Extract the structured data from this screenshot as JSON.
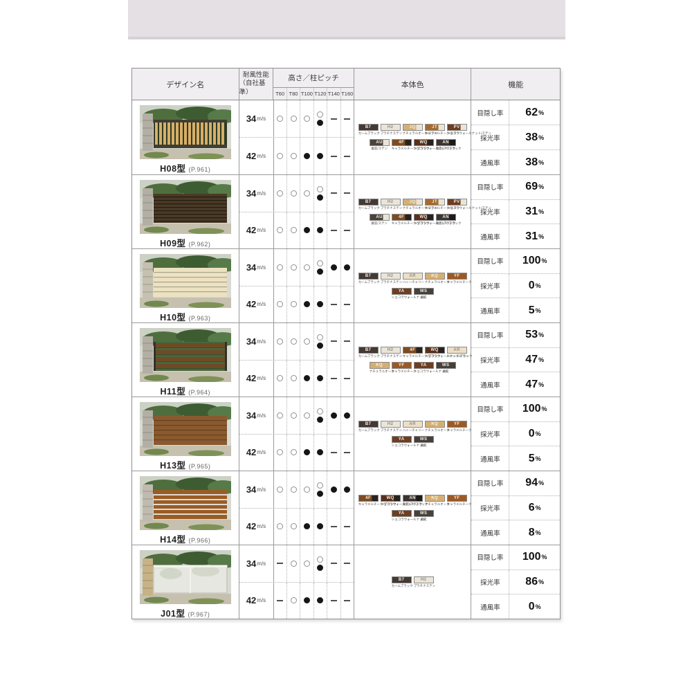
{
  "table": {
    "header": {
      "design": "デザイン名",
      "wind_line1": "耐風性能",
      "wind_line2": "（自社基準）",
      "height_pitch": "高さ／柱ピッチ",
      "height_cols": [
        "T60",
        "T80",
        "T100",
        "T120",
        "T140",
        "T160"
      ],
      "body_color": "本体色",
      "function": "機能"
    },
    "marker_legend": {
      "o": "白丸",
      "f": "黒丸",
      "of": "白丸と黒丸",
      "-": "対応なし"
    },
    "rows": [
      {
        "name": "H08型",
        "page_ref": "(P.961)",
        "photo": {
          "style": "vertical-slats",
          "fence": "#d7af67",
          "pillar": "#b3afa4"
        },
        "wind": [
          {
            "speed": "34",
            "unit": "m/s",
            "marks": [
              "o",
              "o",
              "o",
              "of",
              "-",
              "-"
            ]
          },
          {
            "speed": "42",
            "unit": "m/s",
            "marks": [
              "o",
              "o",
              "f",
              "f",
              "-",
              "-"
            ]
          }
        ],
        "color_rows": [
          [
            {
              "code": "B7",
              "label": "カームブラック",
              "color": "#443933"
            },
            {
              "code": "H2",
              "label": "プラチナステン",
              "color": "#eae5d9",
              "light": true
            },
            {
              "code": "JQ",
              "label": "ナチュラルオーク/ステン",
              "color": "#d4af74",
              "color2": "#e9e4d6"
            },
            {
              "code": "JT",
              "label": "キャラメルチーク/ステン",
              "color": "#a86a2c",
              "color2": "#e9e4d6"
            },
            {
              "code": "PV",
              "label": "ショコラウォールナット/ステン",
              "color": "#6d3e22",
              "color2": "#e9e4d6"
            }
          ],
          [
            {
              "code": "AU",
              "label": "桑炭/ステン",
              "color": "#4a423b",
              "color2": "#e9e4d6"
            },
            {
              "code": "4F",
              "label": "キャラメルチーク/ブラック",
              "color": "#7e4b20",
              "color2": "#272220"
            },
            {
              "code": "WQ",
              "label": "ショコラウォールナット/ブラック",
              "color": "#59301a",
              "color2": "#272220"
            },
            {
              "code": "AN",
              "label": "桑炭/ブラック",
              "color": "#3b3430",
              "color2": "#1d1a19"
            }
          ]
        ],
        "functions": [
          {
            "label": "目隠し率",
            "value": "62",
            "unit": "%"
          },
          {
            "label": "採光率",
            "value": "38",
            "unit": "%"
          },
          {
            "label": "通風率",
            "value": "38",
            "unit": "%"
          }
        ]
      },
      {
        "name": "H09型",
        "page_ref": "(P.962)",
        "photo": {
          "style": "dark-slits",
          "fence": "#4a3a26",
          "pillar": "#b3afa4"
        },
        "wind": [
          {
            "speed": "34",
            "unit": "m/s",
            "marks": [
              "o",
              "o",
              "o",
              "of",
              "-",
              "-"
            ]
          },
          {
            "speed": "42",
            "unit": "m/s",
            "marks": [
              "o",
              "o",
              "f",
              "f",
              "-",
              "-"
            ]
          }
        ],
        "color_rows": [
          [
            {
              "code": "B7",
              "label": "カームブラック",
              "color": "#443933"
            },
            {
              "code": "H2",
              "label": "プラチナステン",
              "color": "#eae5d9",
              "light": true
            },
            {
              "code": "JQ",
              "label": "ナチュラルオーク/ステン",
              "color": "#d4af74",
              "color2": "#e9e4d6"
            },
            {
              "code": "JT",
              "label": "キャラメルチーク/ステン",
              "color": "#a86a2c",
              "color2": "#e9e4d6"
            },
            {
              "code": "PV",
              "label": "ショコラウォールナット/ステン",
              "color": "#6d3e22",
              "color2": "#e9e4d6"
            }
          ],
          [
            {
              "code": "AU",
              "label": "桑炭/ステン",
              "color": "#4a423b",
              "color2": "#e9e4d6"
            },
            {
              "code": "4F",
              "label": "キャラメルチーク/ブラック",
              "color": "#7e4b20",
              "color2": "#272220"
            },
            {
              "code": "WQ",
              "label": "ショコラウォールナット/ブラック",
              "color": "#59301a",
              "color2": "#272220"
            },
            {
              "code": "AN",
              "label": "桑炭/ブラック",
              "color": "#3b3430",
              "color2": "#1d1a19"
            }
          ]
        ],
        "functions": [
          {
            "label": "目隠し率",
            "value": "69",
            "unit": "%"
          },
          {
            "label": "採光率",
            "value": "31",
            "unit": "%"
          },
          {
            "label": "通風率",
            "value": "31",
            "unit": "%"
          }
        ]
      },
      {
        "name": "H10型",
        "page_ref": "(P.963)",
        "photo": {
          "style": "solid-boards",
          "fence": "#ece2c2",
          "pillar": "#c6c0b0"
        },
        "wind": [
          {
            "speed": "34",
            "unit": "m/s",
            "marks": [
              "o",
              "o",
              "o",
              "of",
              "f",
              "f"
            ]
          },
          {
            "speed": "42",
            "unit": "m/s",
            "marks": [
              "o",
              "o",
              "f",
              "f",
              "-",
              "-"
            ]
          }
        ],
        "color_rows": [
          [
            {
              "code": "B7",
              "label": "カームブラック",
              "color": "#443933"
            },
            {
              "code": "H2",
              "label": "プラチナステン",
              "color": "#eae5d9",
              "light": true
            },
            {
              "code": "AR",
              "label": "ハニーチェリー",
              "color": "#ecdfc6",
              "light": true
            },
            {
              "code": "KQ",
              "label": "ナチュラルオーク",
              "color": "#d4af74"
            },
            {
              "code": "YF",
              "label": "キャラメルチーク",
              "color": "#9b5a25"
            }
          ],
          [
            {
              "code": "YA",
              "label": "ショコラウォールナット",
              "color": "#6d3e22"
            },
            {
              "code": "WS",
              "label": "桑炭",
              "color": "#46403a"
            }
          ]
        ],
        "functions": [
          {
            "label": "目隠し率",
            "value": "100",
            "unit": "%"
          },
          {
            "label": "採光率",
            "value": "0",
            "unit": "%"
          },
          {
            "label": "通風率",
            "value": "5",
            "unit": "%"
          }
        ]
      },
      {
        "name": "H11型",
        "page_ref": "(P.964)",
        "photo": {
          "style": "open-boards",
          "fence": "#6f4a26",
          "pillar": "#b3afa4"
        },
        "wind": [
          {
            "speed": "34",
            "unit": "m/s",
            "marks": [
              "o",
              "o",
              "o",
              "of",
              "-",
              "-"
            ]
          },
          {
            "speed": "42",
            "unit": "m/s",
            "marks": [
              "o",
              "o",
              "f",
              "f",
              "-",
              "-"
            ]
          }
        ],
        "color_rows": [
          [
            {
              "code": "B7",
              "label": "カームブラック",
              "color": "#443933"
            },
            {
              "code": "H2",
              "label": "プラチナステン",
              "color": "#eae5d9",
              "light": true
            },
            {
              "code": "4F",
              "label": "キャラメルチーク/ブラック",
              "color": "#7e4b20",
              "color2": "#272220"
            },
            {
              "code": "WQ",
              "label": "ショコラウォールナット/ブラック",
              "color": "#59301a",
              "color2": "#272220"
            },
            {
              "code": "AR",
              "label": "ハニーチェリー",
              "color": "#ecdfc6",
              "light": true
            }
          ],
          [
            {
              "code": "KQ",
              "label": "ナチュラルオーク",
              "color": "#d4af74"
            },
            {
              "code": "YF",
              "label": "キャラメルチーク",
              "color": "#9b5a25"
            },
            {
              "code": "YA",
              "label": "ショコラウォールナット",
              "color": "#6d3e22"
            },
            {
              "code": "WS",
              "label": "桑炭",
              "color": "#46403a"
            }
          ]
        ],
        "functions": [
          {
            "label": "目隠し率",
            "value": "53",
            "unit": "%"
          },
          {
            "label": "採光率",
            "value": "47",
            "unit": "%"
          },
          {
            "label": "通風率",
            "value": "47",
            "unit": "%"
          }
        ]
      },
      {
        "name": "H13型",
        "page_ref": "(P.965)",
        "photo": {
          "style": "solid-boards",
          "fence": "#8a5a2e",
          "pillar": "#b3afa4"
        },
        "wind": [
          {
            "speed": "34",
            "unit": "m/s",
            "marks": [
              "o",
              "o",
              "o",
              "of",
              "f",
              "f"
            ]
          },
          {
            "speed": "42",
            "unit": "m/s",
            "marks": [
              "o",
              "o",
              "f",
              "f",
              "-",
              "-"
            ]
          }
        ],
        "color_rows": [
          [
            {
              "code": "B7",
              "label": "カームブラック",
              "color": "#443933"
            },
            {
              "code": "H2",
              "label": "プラチナステン",
              "color": "#eae5d9",
              "light": true
            },
            {
              "code": "AR",
              "label": "ハニーチェリー",
              "color": "#ecdfc6",
              "light": true
            },
            {
              "code": "KQ",
              "label": "ナチュラルオーク",
              "color": "#d4af74"
            },
            {
              "code": "YF",
              "label": "キャラメルチーク",
              "color": "#9b5a25"
            }
          ],
          [
            {
              "code": "YA",
              "label": "ショコラウォールナット",
              "color": "#6d3e22"
            },
            {
              "code": "WS",
              "label": "桑炭",
              "color": "#46403a"
            }
          ]
        ],
        "functions": [
          {
            "label": "目隠し率",
            "value": "100",
            "unit": "%"
          },
          {
            "label": "採光率",
            "value": "0",
            "unit": "%"
          },
          {
            "label": "通風率",
            "value": "5",
            "unit": "%"
          }
        ]
      },
      {
        "name": "H14型",
        "page_ref": "(P.966)",
        "photo": {
          "style": "gap-boards",
          "fence": "#9a5c24",
          "pillar": "#c0bbae"
        },
        "wind": [
          {
            "speed": "34",
            "unit": "m/s",
            "marks": [
              "o",
              "o",
              "o",
              "of",
              "f",
              "f"
            ]
          },
          {
            "speed": "42",
            "unit": "m/s",
            "marks": [
              "o",
              "o",
              "f",
              "f",
              "-",
              "-"
            ]
          }
        ],
        "color_rows": [
          [
            {
              "code": "4F",
              "label": "キャラメルチーク/ブラック",
              "color": "#7e4b20",
              "color2": "#272220"
            },
            {
              "code": "WQ",
              "label": "ショコラウォールナット/ブラック",
              "color": "#59301a",
              "color2": "#272220"
            },
            {
              "code": "AN",
              "label": "桑炭/ブラック",
              "color": "#3b3430",
              "color2": "#1d1a19"
            },
            {
              "code": "KQ",
              "label": "ナチュラルオーク",
              "color": "#d4af74"
            },
            {
              "code": "YF",
              "label": "キャラメルチーク",
              "color": "#9b5a25"
            }
          ],
          [
            {
              "code": "YA",
              "label": "ショコラウォールナット",
              "color": "#6d3e22"
            },
            {
              "code": "WS",
              "label": "桑炭",
              "color": "#46403a"
            }
          ]
        ],
        "functions": [
          {
            "label": "目隠し率",
            "value": "94",
            "unit": "%"
          },
          {
            "label": "採光率",
            "value": "6",
            "unit": "%"
          },
          {
            "label": "通風率",
            "value": "8",
            "unit": "%"
          }
        ]
      },
      {
        "name": "J01型",
        "page_ref": "(P.967)",
        "photo": {
          "style": "translucent",
          "fence": "#e7e8e2",
          "pillar": "#c6b286"
        },
        "wind": [
          {
            "speed": "34",
            "unit": "m/s",
            "marks": [
              "-",
              "o",
              "o",
              "of",
              "-",
              "-"
            ]
          },
          {
            "speed": "42",
            "unit": "m/s",
            "marks": [
              "-",
              "o",
              "f",
              "f",
              "-",
              "-"
            ]
          }
        ],
        "color_rows": [
          [
            {
              "code": "B7",
              "label": "カームブラック",
              "color": "#443933"
            },
            {
              "code": "H2",
              "label": "プラチナステン",
              "color": "#eae5d9",
              "light": true
            }
          ]
        ],
        "functions": [
          {
            "label": "目隠し率",
            "value": "100",
            "unit": "%"
          },
          {
            "label": "採光率",
            "value": "86",
            "unit": "%"
          },
          {
            "label": "通風率",
            "value": "0",
            "unit": "%"
          }
        ]
      }
    ]
  }
}
